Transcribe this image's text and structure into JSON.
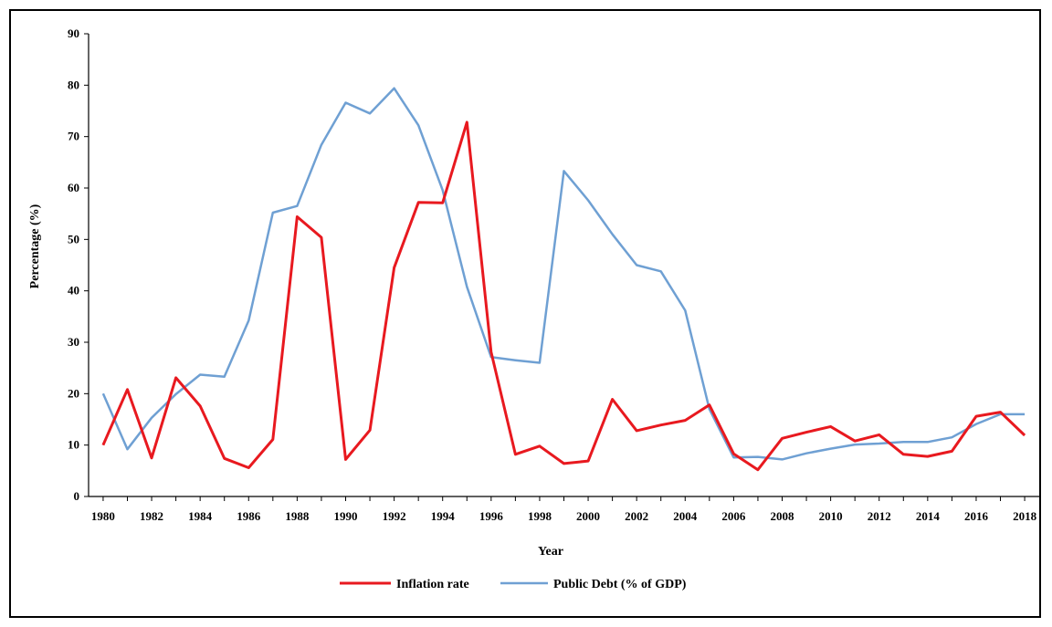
{
  "chart_data": {
    "type": "line",
    "xlabel": "Year",
    "ylabel": "Percentage (%)",
    "ylim": [
      0,
      90
    ],
    "y_ticks": [
      0,
      10,
      20,
      30,
      40,
      50,
      60,
      70,
      80,
      90
    ],
    "x_ticks": [
      "1980",
      "1982",
      "1984",
      "1986",
      "1988",
      "1990",
      "1992",
      "1994",
      "1996",
      "1998",
      "2000",
      "2002",
      "2004",
      "2006",
      "2008",
      "2010",
      "2012",
      "2014",
      "2016",
      "2018"
    ],
    "x": [
      1980,
      1981,
      1982,
      1983,
      1984,
      1985,
      1986,
      1987,
      1988,
      1989,
      1990,
      1991,
      1992,
      1993,
      1994,
      1995,
      1996,
      1997,
      1998,
      1999,
      2000,
      2001,
      2002,
      2003,
      2004,
      2005,
      2006,
      2007,
      2008,
      2009,
      2010,
      2011,
      2012,
      2013,
      2014,
      2015,
      2016,
      2017,
      2018
    ],
    "grid": false,
    "legend_position": "bottom",
    "series": [
      {
        "name": "Inflation rate",
        "color": "#e8191f",
        "values": [
          10,
          20.8,
          7.5,
          23.1,
          17.6,
          7.4,
          5.6,
          11.1,
          54.4,
          50.4,
          7.2,
          12.9,
          44.5,
          57.2,
          57.1,
          72.8,
          28.1,
          8.2,
          9.8,
          6.4,
          6.9,
          18.9,
          12.8,
          13.9,
          14.8,
          17.8,
          8.3,
          5.2,
          11.3,
          12.5,
          13.6,
          10.8,
          12.0,
          8.2,
          7.8,
          8.8,
          15.6,
          16.4,
          11.9
        ]
      },
      {
        "name": "Public Debt (% of GDP)",
        "color": "#6fa0d3",
        "values": [
          20,
          9.2,
          15.3,
          19.9,
          23.7,
          23.3,
          34.2,
          55.2,
          56.5,
          68.4,
          76.6,
          74.5,
          79.4,
          72.2,
          59.6,
          40.8,
          27.1,
          26.5,
          26.0,
          63.3,
          57.6,
          51.0,
          45.0,
          43.8,
          36.2,
          17.0,
          7.6,
          7.7,
          7.2,
          8.4,
          9.3,
          10.1,
          10.3,
          10.6,
          10.6,
          11.5,
          14.1,
          16.0,
          16.0
        ]
      }
    ]
  }
}
